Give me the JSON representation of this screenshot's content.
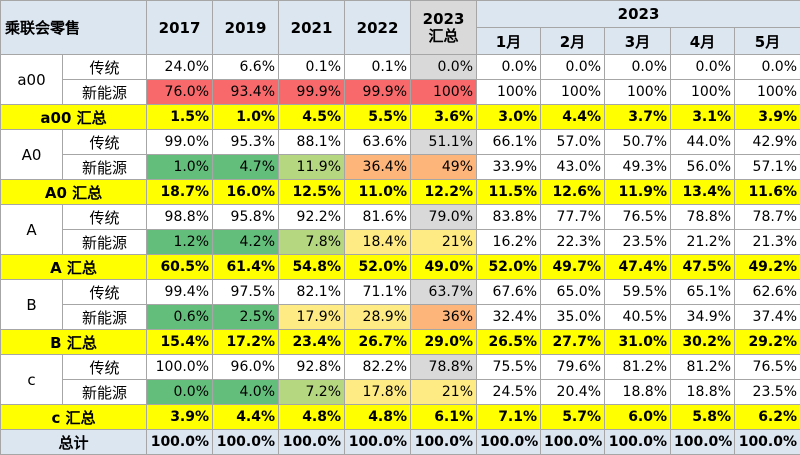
{
  "title": "乘联会零售",
  "header": {
    "years": [
      "2017",
      "2019",
      "2021",
      "2022"
    ],
    "y2023_total_line1": "2023",
    "y2023_total_line2": "汇总",
    "y2023_group": "2023",
    "months": [
      "1月",
      "2月",
      "3月",
      "4月",
      "5月"
    ]
  },
  "colors": {
    "header_bg": "#dce6f1",
    "summary_bg": "#ffff00",
    "gray_col": "#d9d9d9",
    "heat_scale": [
      "#63be7b",
      "#b5d77f",
      "#ffeb84",
      "#fdb57a",
      "#f8696b"
    ]
  },
  "groups": [
    {
      "category": "a00",
      "rows": [
        {
          "type": "传统",
          "values": [
            "24.0%",
            "6.6%",
            "0.1%",
            "0.1%",
            "0.0%",
            "0.0%",
            "0.0%",
            "0.0%",
            "0.0%",
            "0.0%"
          ]
        },
        {
          "type": "新能源",
          "values": [
            "76.0%",
            "93.4%",
            "99.9%",
            "99.9%",
            "100%",
            "100%",
            "100%",
            "100%",
            "100%",
            "100%"
          ]
        }
      ],
      "summary": {
        "label": "a00 汇总",
        "values": [
          "1.5%",
          "1.0%",
          "4.5%",
          "5.5%",
          "3.6%",
          "3.0%",
          "4.4%",
          "3.7%",
          "3.1%",
          "3.9%"
        ]
      }
    },
    {
      "category": "A0",
      "rows": [
        {
          "type": "传统",
          "values": [
            "99.0%",
            "95.3%",
            "88.1%",
            "63.6%",
            "51.1%",
            "66.1%",
            "57.0%",
            "50.7%",
            "44.0%",
            "42.9%"
          ]
        },
        {
          "type": "新能源",
          "values": [
            "1.0%",
            "4.7%",
            "11.9%",
            "36.4%",
            "49%",
            "33.9%",
            "43.0%",
            "49.3%",
            "56.0%",
            "57.1%"
          ]
        }
      ],
      "summary": {
        "label": "A0 汇总",
        "values": [
          "18.7%",
          "16.0%",
          "12.5%",
          "11.0%",
          "12.2%",
          "11.5%",
          "12.6%",
          "11.9%",
          "13.4%",
          "11.6%"
        ]
      }
    },
    {
      "category": "A",
      "rows": [
        {
          "type": "传统",
          "values": [
            "98.8%",
            "95.8%",
            "92.2%",
            "81.6%",
            "79.0%",
            "83.8%",
            "77.7%",
            "76.5%",
            "78.8%",
            "78.7%"
          ]
        },
        {
          "type": "新能源",
          "values": [
            "1.2%",
            "4.2%",
            "7.8%",
            "18.4%",
            "21%",
            "16.2%",
            "22.3%",
            "23.5%",
            "21.2%",
            "21.3%"
          ]
        }
      ],
      "summary": {
        "label": "A 汇总",
        "values": [
          "60.5%",
          "61.4%",
          "54.8%",
          "52.0%",
          "49.0%",
          "52.0%",
          "49.7%",
          "47.4%",
          "47.5%",
          "49.2%"
        ]
      }
    },
    {
      "category": "B",
      "rows": [
        {
          "type": "传统",
          "values": [
            "99.4%",
            "97.5%",
            "82.1%",
            "71.1%",
            "63.7%",
            "67.6%",
            "65.0%",
            "59.5%",
            "65.1%",
            "62.6%"
          ]
        },
        {
          "type": "新能源",
          "values": [
            "0.6%",
            "2.5%",
            "17.9%",
            "28.9%",
            "36%",
            "32.4%",
            "35.0%",
            "40.5%",
            "34.9%",
            "37.4%"
          ]
        }
      ],
      "summary": {
        "label": "B 汇总",
        "values": [
          "15.4%",
          "17.2%",
          "23.4%",
          "26.7%",
          "29.0%",
          "26.5%",
          "27.7%",
          "31.0%",
          "30.2%",
          "29.2%"
        ]
      }
    },
    {
      "category": "c",
      "rows": [
        {
          "type": "传统",
          "values": [
            "100.0%",
            "96.0%",
            "92.8%",
            "82.2%",
            "78.8%",
            "75.5%",
            "79.6%",
            "81.2%",
            "81.2%",
            "76.5%"
          ]
        },
        {
          "type": "新能源",
          "values": [
            "0.0%",
            "4.0%",
            "7.2%",
            "17.8%",
            "21%",
            "24.5%",
            "20.4%",
            "18.8%",
            "18.8%",
            "23.5%"
          ]
        }
      ],
      "summary": {
        "label": "c 汇总",
        "values": [
          "3.9%",
          "4.4%",
          "4.8%",
          "4.8%",
          "6.1%",
          "7.1%",
          "5.7%",
          "6.0%",
          "5.8%",
          "6.2%"
        ]
      }
    }
  ],
  "total": {
    "label": "总计",
    "values": [
      "100.0%",
      "100.0%",
      "100.0%",
      "100.0%",
      "100.0%",
      "100.0%",
      "100.0%",
      "100.0%",
      "100.0%",
      "100.0%"
    ]
  }
}
